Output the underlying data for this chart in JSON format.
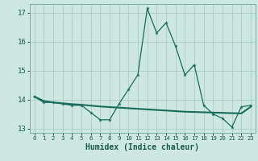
{
  "xlabel": "Humidex (Indice chaleur)",
  "background_color": "#cce8e0",
  "grid_color": "#aacfc8",
  "line_color": "#1a6b5a",
  "x_values": [
    0,
    1,
    2,
    3,
    4,
    5,
    6,
    7,
    8,
    9,
    10,
    11,
    12,
    13,
    14,
    15,
    16,
    17,
    18,
    19,
    20,
    21,
    22,
    23
  ],
  "line1_y": [
    14.1,
    13.9,
    13.9,
    13.85,
    13.8,
    13.8,
    13.55,
    13.3,
    13.3,
    13.85,
    14.35,
    14.85,
    17.15,
    16.3,
    16.65,
    15.85,
    14.85,
    15.2,
    13.8,
    13.5,
    13.35,
    13.05,
    13.75,
    13.8
  ],
  "line2_y": [
    14.1,
    13.95,
    13.9,
    13.87,
    13.84,
    13.82,
    13.79,
    13.76,
    13.74,
    13.72,
    13.7,
    13.68,
    13.66,
    13.64,
    13.62,
    13.6,
    13.58,
    13.57,
    13.56,
    13.55,
    13.54,
    13.53,
    13.52,
    13.75
  ],
  "ylim": [
    12.85,
    17.3
  ],
  "yticks": [
    13,
    14,
    15,
    16,
    17
  ],
  "xticks": [
    0,
    1,
    2,
    3,
    4,
    5,
    6,
    7,
    8,
    9,
    10,
    11,
    12,
    13,
    14,
    15,
    16,
    17,
    18,
    19,
    20,
    21,
    22,
    23
  ]
}
